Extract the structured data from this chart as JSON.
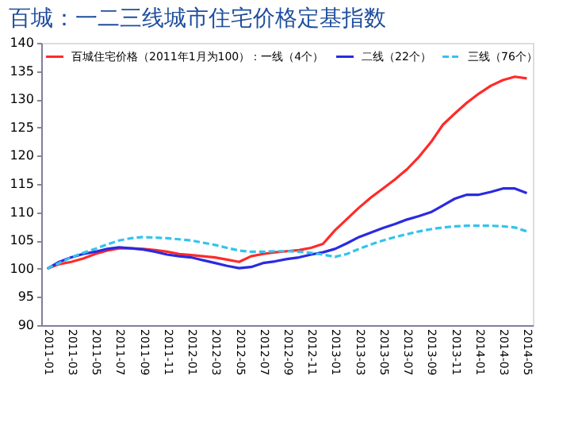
{
  "chart_data": {
    "type": "line",
    "title": "百城：一二三线城市住宅价格定基指数",
    "categories": [
      "2011-01",
      null,
      "2011-03",
      null,
      "2011-05",
      null,
      "2011-07",
      null,
      "2011-09",
      null,
      "2011-11",
      null,
      "2012-01",
      null,
      "2012-03",
      null,
      "2012-05",
      null,
      "2012-07",
      null,
      "2012-09",
      null,
      "2012-11",
      null,
      "2013-01",
      null,
      "2013-03",
      null,
      "2013-05",
      null,
      "2013-07",
      null,
      "2013-09",
      null,
      "2013-11",
      null,
      "2014-01",
      null,
      "2014-03",
      null,
      "2014-05"
    ],
    "series": [
      {
        "name": "百城住宅价格（2011年1月为100）：一线（4个）",
        "color": "#ff2a2a",
        "line_style": "solid",
        "values": [
          100,
          100.8,
          101.2,
          101.8,
          102.6,
          103.2,
          103.6,
          103.6,
          103.5,
          103.3,
          103.0,
          102.6,
          102.4,
          102.2,
          102.0,
          101.6,
          101.2,
          102.2,
          102.6,
          102.9,
          103.1,
          103.3,
          103.7,
          104.4,
          106.8,
          108.8,
          110.8,
          112.6,
          114.2,
          115.8,
          117.6,
          119.8,
          122.4,
          125.5,
          127.5,
          129.4,
          131.0,
          132.4,
          133.4,
          134.0,
          133.7
        ]
      },
      {
        "name": "二线（22个）",
        "color": "#2a2ae0",
        "line_style": "solid",
        "values": [
          100,
          101.2,
          102.0,
          102.6,
          103.0,
          103.5,
          103.8,
          103.6,
          103.4,
          103.0,
          102.5,
          102.2,
          102.0,
          101.5,
          101.0,
          100.5,
          100.1,
          100.3,
          101.0,
          101.3,
          101.7,
          102.0,
          102.5,
          102.9,
          103.5,
          104.5,
          105.6,
          106.4,
          107.2,
          107.9,
          108.7,
          109.3,
          110.0,
          111.2,
          112.4,
          113.1,
          113.1,
          113.6,
          114.2,
          114.2,
          113.4
        ]
      },
      {
        "name": "三线（76个）",
        "color": "#33c3ee",
        "line_style": "dashed",
        "values": [
          100,
          101.0,
          102.0,
          102.8,
          103.5,
          104.3,
          105.0,
          105.4,
          105.6,
          105.5,
          105.4,
          105.2,
          105.0,
          104.6,
          104.2,
          103.7,
          103.2,
          103.0,
          103.0,
          103.1,
          103.1,
          103.0,
          102.8,
          102.5,
          102.1,
          102.6,
          103.5,
          104.3,
          105.0,
          105.6,
          106.1,
          106.6,
          107.0,
          107.3,
          107.5,
          107.6,
          107.6,
          107.6,
          107.5,
          107.3,
          106.6
        ]
      }
    ],
    "ylim": [
      90,
      140
    ],
    "yticks": [
      90,
      95,
      100,
      105,
      110,
      115,
      120,
      125,
      130,
      135,
      140
    ],
    "grid": false,
    "legend": "top left",
    "marker": "none"
  }
}
